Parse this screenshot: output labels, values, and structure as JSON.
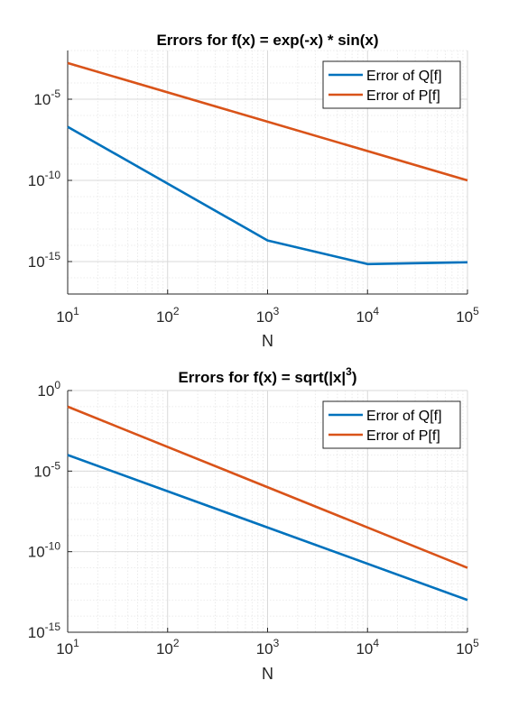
{
  "chart_data": [
    {
      "type": "line",
      "title_parts": {
        "prefix": "Errors for f(x) = exp(-x) * sin(x)",
        "sup": ""
      },
      "xlabel": "N",
      "ylabel": "",
      "x_scale": "log",
      "y_scale": "log",
      "xlim": [
        10,
        100000
      ],
      "ylim": [
        1e-17,
        0.01
      ],
      "xticks": [
        10,
        100,
        1000,
        10000,
        100000
      ],
      "xtick_labels": [
        {
          "base": "10",
          "exp": "1"
        },
        {
          "base": "10",
          "exp": "2"
        },
        {
          "base": "10",
          "exp": "3"
        },
        {
          "base": "10",
          "exp": "4"
        },
        {
          "base": "10",
          "exp": "5"
        }
      ],
      "yticks": [
        1e-15,
        1e-10,
        1e-05
      ],
      "ytick_labels": [
        {
          "base": "10",
          "exp": "-15"
        },
        {
          "base": "10",
          "exp": "-10"
        },
        {
          "base": "10",
          "exp": "-5"
        }
      ],
      "grid": true,
      "legend_position": "top-right",
      "series": [
        {
          "name": "Error of Q[f]",
          "color": "#0072BD",
          "x": [
            10,
            1000,
            10000,
            100000
          ],
          "y": [
            2e-07,
            2e-14,
            7e-16,
            9e-16
          ]
        },
        {
          "name": "Error of P[f]",
          "color": "#D95319",
          "x": [
            10,
            100000
          ],
          "y": [
            0.0017,
            1e-10
          ]
        }
      ]
    },
    {
      "type": "line",
      "title_parts": {
        "prefix": "Errors for f(x) = sqrt(|x|",
        "sup": "3",
        "suffix": ")"
      },
      "xlabel": "N",
      "ylabel": "",
      "x_scale": "log",
      "y_scale": "log",
      "xlim": [
        10,
        100000
      ],
      "ylim": [
        1e-15,
        1
      ],
      "xticks": [
        10,
        100,
        1000,
        10000,
        100000
      ],
      "xtick_labels": [
        {
          "base": "10",
          "exp": "1"
        },
        {
          "base": "10",
          "exp": "2"
        },
        {
          "base": "10",
          "exp": "3"
        },
        {
          "base": "10",
          "exp": "4"
        },
        {
          "base": "10",
          "exp": "5"
        }
      ],
      "yticks": [
        1e-15,
        1e-10,
        1e-05,
        1
      ],
      "ytick_labels": [
        {
          "base": "10",
          "exp": "-15"
        },
        {
          "base": "10",
          "exp": "-10"
        },
        {
          "base": "10",
          "exp": "-5"
        },
        {
          "base": "10",
          "exp": "0"
        }
      ],
      "grid": true,
      "legend_position": "top-right",
      "series": [
        {
          "name": "Error of Q[f]",
          "color": "#0072BD",
          "x": [
            10,
            100000
          ],
          "y": [
            0.0001,
            1e-13
          ]
        },
        {
          "name": "Error of P[f]",
          "color": "#D95319",
          "x": [
            10,
            100000
          ],
          "y": [
            0.1,
            1e-11
          ]
        }
      ]
    }
  ]
}
